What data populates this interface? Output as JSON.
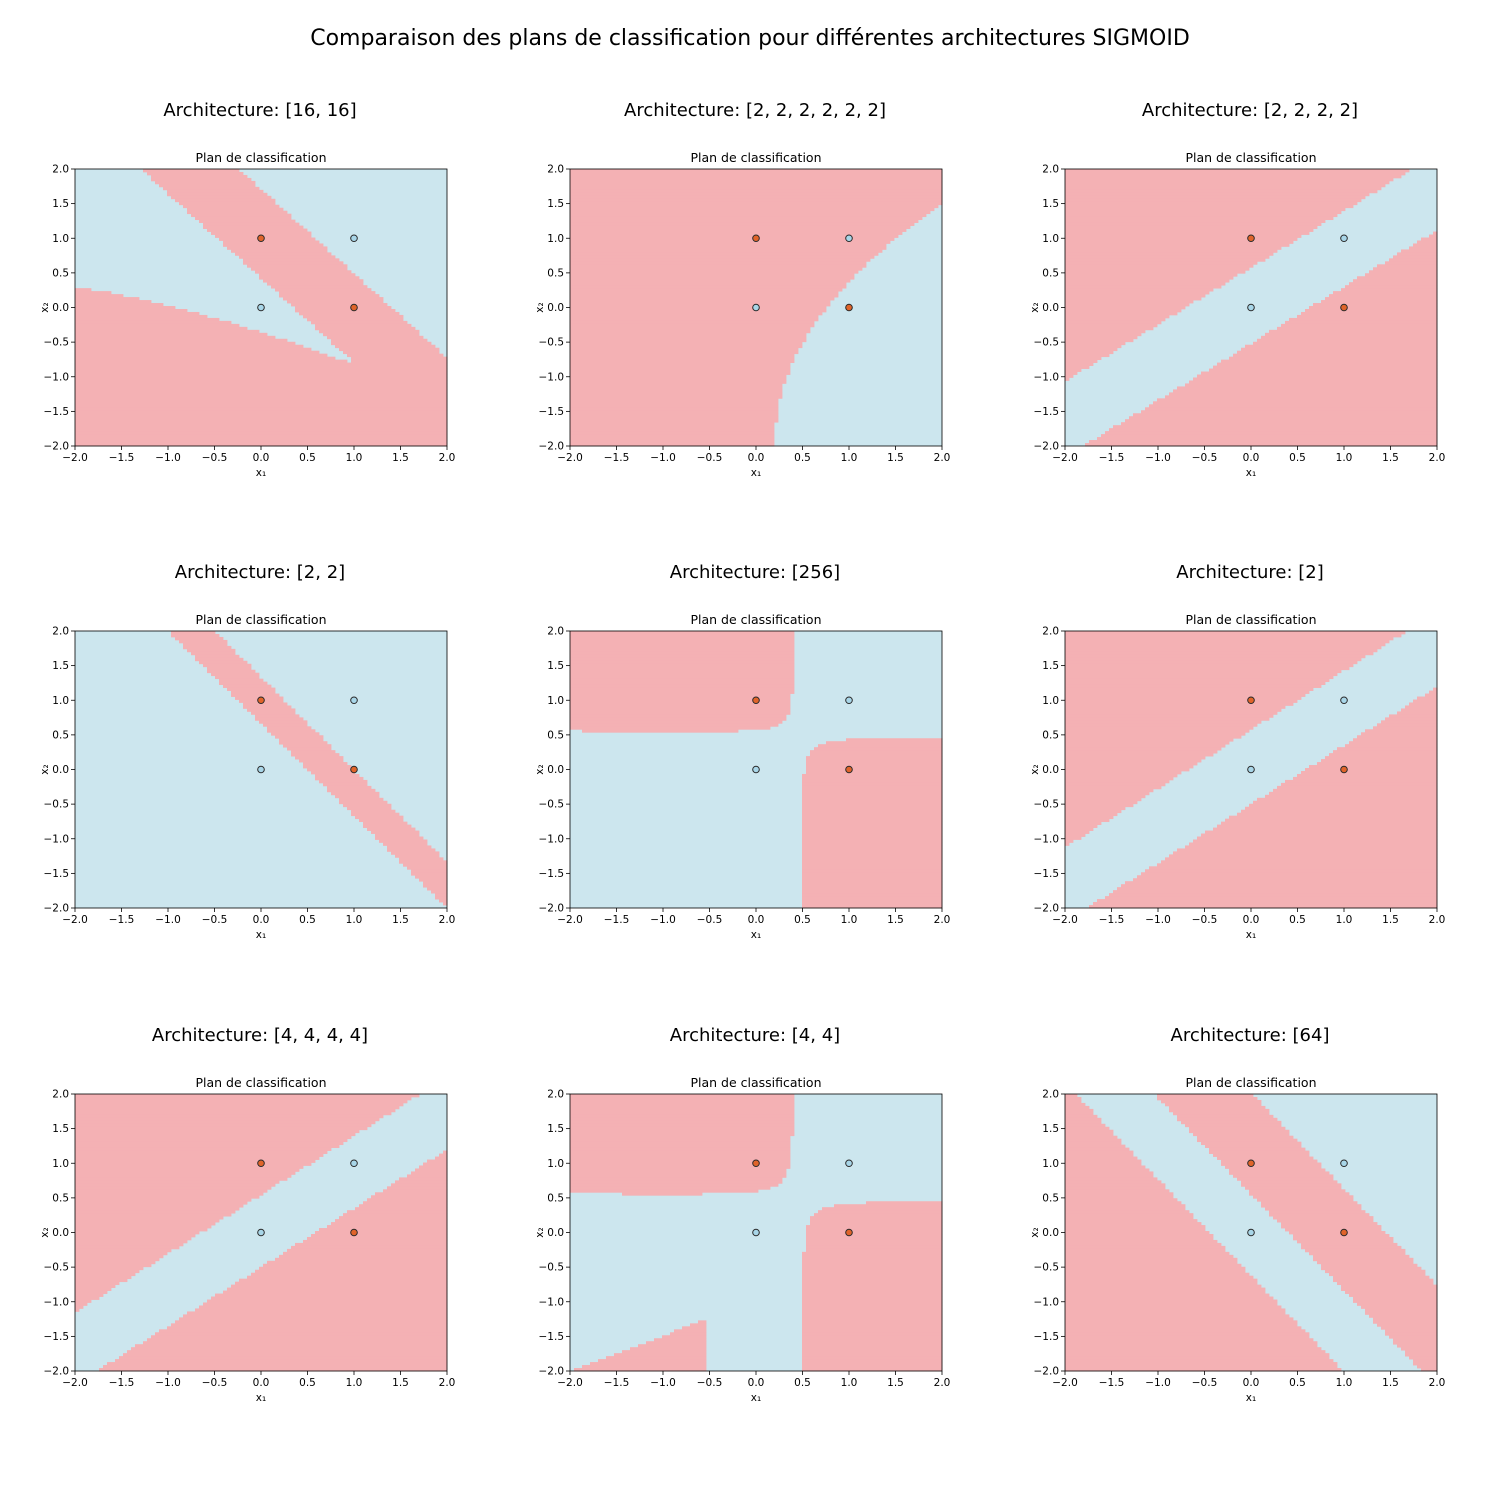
{
  "figure": {
    "title": "Comparaison des plans de classification pour différentes architectures SIGMOID"
  },
  "style": {
    "class0_color": "#cce6ee",
    "class1_color": "#f4b1b4",
    "point0_color": "#a8d6e8",
    "point1_color": "#e0642a",
    "axis_color": "#000000"
  },
  "chart_data": [
    {
      "type": "heatmap",
      "architecture_label": "Architecture: [16, 16]",
      "title": "Plan de classification",
      "xlabel": "x₁",
      "ylabel": "x₂",
      "xlim": [
        -2.0,
        2.0
      ],
      "ylim": [
        -2.0,
        2.0
      ],
      "xticks": [
        "−2.0",
        "−1.5",
        "−1.0",
        "−0.5",
        "0.0",
        "0.5",
        "1.0",
        "1.5",
        "2.0"
      ],
      "yticks": [
        "−2.0",
        "−1.5",
        "−1.0",
        "−0.5",
        "0.0",
        "0.5",
        "1.0",
        "1.5",
        "2.0"
      ],
      "points": [
        {
          "x": 0,
          "y": 0,
          "label": 0
        },
        {
          "x": 0,
          "y": 1,
          "label": 1
        },
        {
          "x": 1,
          "y": 0,
          "label": 1
        },
        {
          "x": 1,
          "y": 1,
          "label": 0
        }
      ]
    },
    {
      "type": "heatmap",
      "architecture_label": "Architecture: [2, 2, 2, 2, 2, 2]",
      "title": "Plan de classification",
      "xlabel": "x₁",
      "ylabel": "x₂",
      "xlim": [
        -2.0,
        2.0
      ],
      "ylim": [
        -2.0,
        2.0
      ],
      "xticks": [
        "−2.0",
        "−1.5",
        "−1.0",
        "−0.5",
        "0.0",
        "0.5",
        "1.0",
        "1.5",
        "2.0"
      ],
      "yticks": [
        "−2.0",
        "−1.5",
        "−1.0",
        "−0.5",
        "0.0",
        "0.5",
        "1.0",
        "1.5",
        "2.0"
      ],
      "points": [
        {
          "x": 0,
          "y": 0,
          "label": 0
        },
        {
          "x": 0,
          "y": 1,
          "label": 1
        },
        {
          "x": 1,
          "y": 0,
          "label": 1
        },
        {
          "x": 1,
          "y": 1,
          "label": 0
        }
      ]
    },
    {
      "type": "heatmap",
      "architecture_label": "Architecture: [2, 2, 2, 2]",
      "title": "Plan de classification",
      "xlabel": "x₁",
      "ylabel": "x₂",
      "xlim": [
        -2.0,
        2.0
      ],
      "ylim": [
        -2.0,
        2.0
      ],
      "xticks": [
        "−2.0",
        "−1.5",
        "−1.0",
        "−0.5",
        "0.0",
        "0.5",
        "1.0",
        "1.5",
        "2.0"
      ],
      "yticks": [
        "−2.0",
        "−1.5",
        "−1.0",
        "−0.5",
        "0.0",
        "0.5",
        "1.0",
        "1.5",
        "2.0"
      ],
      "points": [
        {
          "x": 0,
          "y": 0,
          "label": 0
        },
        {
          "x": 0,
          "y": 1,
          "label": 1
        },
        {
          "x": 1,
          "y": 0,
          "label": 1
        },
        {
          "x": 1,
          "y": 1,
          "label": 0
        }
      ]
    },
    {
      "type": "heatmap",
      "architecture_label": "Architecture: [2, 2]",
      "title": "Plan de classification",
      "xlabel": "x₁",
      "ylabel": "x₂",
      "xlim": [
        -2.0,
        2.0
      ],
      "ylim": [
        -2.0,
        2.0
      ],
      "xticks": [
        "−2.0",
        "−1.5",
        "−1.0",
        "−0.5",
        "0.0",
        "0.5",
        "1.0",
        "1.5",
        "2.0"
      ],
      "yticks": [
        "−2.0",
        "−1.5",
        "−1.0",
        "−0.5",
        "0.0",
        "0.5",
        "1.0",
        "1.5",
        "2.0"
      ],
      "points": [
        {
          "x": 0,
          "y": 0,
          "label": 0
        },
        {
          "x": 0,
          "y": 1,
          "label": 1
        },
        {
          "x": 1,
          "y": 0,
          "label": 1
        },
        {
          "x": 1,
          "y": 1,
          "label": 0
        }
      ]
    },
    {
      "type": "heatmap",
      "architecture_label": "Architecture: [256]",
      "title": "Plan de classification",
      "xlabel": "x₁",
      "ylabel": "x₂",
      "xlim": [
        -2.0,
        2.0
      ],
      "ylim": [
        -2.0,
        2.0
      ],
      "xticks": [
        "−2.0",
        "−1.5",
        "−1.0",
        "−0.5",
        "0.0",
        "0.5",
        "1.0",
        "1.5",
        "2.0"
      ],
      "yticks": [
        "−2.0",
        "−1.5",
        "−1.0",
        "−0.5",
        "0.0",
        "0.5",
        "1.0",
        "1.5",
        "2.0"
      ],
      "points": [
        {
          "x": 0,
          "y": 0,
          "label": 0
        },
        {
          "x": 0,
          "y": 1,
          "label": 1
        },
        {
          "x": 1,
          "y": 0,
          "label": 1
        },
        {
          "x": 1,
          "y": 1,
          "label": 0
        }
      ]
    },
    {
      "type": "heatmap",
      "architecture_label": "Architecture: [2]",
      "title": "Plan de classification",
      "xlabel": "x₁",
      "ylabel": "x₂",
      "xlim": [
        -2.0,
        2.0
      ],
      "ylim": [
        -2.0,
        2.0
      ],
      "xticks": [
        "−2.0",
        "−1.5",
        "−1.0",
        "−0.5",
        "0.0",
        "0.5",
        "1.0",
        "1.5",
        "2.0"
      ],
      "yticks": [
        "−2.0",
        "−1.5",
        "−1.0",
        "−0.5",
        "0.0",
        "0.5",
        "1.0",
        "1.5",
        "2.0"
      ],
      "points": [
        {
          "x": 0,
          "y": 0,
          "label": 0
        },
        {
          "x": 0,
          "y": 1,
          "label": 1
        },
        {
          "x": 1,
          "y": 0,
          "label": 1
        },
        {
          "x": 1,
          "y": 1,
          "label": 0
        }
      ]
    },
    {
      "type": "heatmap",
      "architecture_label": "Architecture: [4, 4, 4, 4]",
      "title": "Plan de classification",
      "xlabel": "x₁",
      "ylabel": "x₂",
      "xlim": [
        -2.0,
        2.0
      ],
      "ylim": [
        -2.0,
        2.0
      ],
      "xticks": [
        "−2.0",
        "−1.5",
        "−1.0",
        "−0.5",
        "0.0",
        "0.5",
        "1.0",
        "1.5",
        "2.0"
      ],
      "yticks": [
        "−2.0",
        "−1.5",
        "−1.0",
        "−0.5",
        "0.0",
        "0.5",
        "1.0",
        "1.5",
        "2.0"
      ],
      "points": [
        {
          "x": 0,
          "y": 0,
          "label": 0
        },
        {
          "x": 0,
          "y": 1,
          "label": 1
        },
        {
          "x": 1,
          "y": 0,
          "label": 1
        },
        {
          "x": 1,
          "y": 1,
          "label": 0
        }
      ]
    },
    {
      "type": "heatmap",
      "architecture_label": "Architecture: [4, 4]",
      "title": "Plan de classification",
      "xlabel": "x₁",
      "ylabel": "x₂",
      "xlim": [
        -2.0,
        2.0
      ],
      "ylim": [
        -2.0,
        2.0
      ],
      "xticks": [
        "−2.0",
        "−1.5",
        "−1.0",
        "−0.5",
        "0.0",
        "0.5",
        "1.0",
        "1.5",
        "2.0"
      ],
      "yticks": [
        "−2.0",
        "−1.5",
        "−1.0",
        "−0.5",
        "0.0",
        "0.5",
        "1.0",
        "1.5",
        "2.0"
      ],
      "points": [
        {
          "x": 0,
          "y": 0,
          "label": 0
        },
        {
          "x": 0,
          "y": 1,
          "label": 1
        },
        {
          "x": 1,
          "y": 0,
          "label": 1
        },
        {
          "x": 1,
          "y": 1,
          "label": 0
        }
      ]
    },
    {
      "type": "heatmap",
      "architecture_label": "Architecture: [64]",
      "title": "Plan de classification",
      "xlabel": "x₁",
      "ylabel": "x₂",
      "xlim": [
        -2.0,
        2.0
      ],
      "ylim": [
        -2.0,
        2.0
      ],
      "xticks": [
        "−2.0",
        "−1.5",
        "−1.0",
        "−0.5",
        "0.0",
        "0.5",
        "1.0",
        "1.5",
        "2.0"
      ],
      "yticks": [
        "−2.0",
        "−1.5",
        "−1.0",
        "−0.5",
        "0.0",
        "0.5",
        "1.0",
        "1.5",
        "2.0"
      ],
      "points": [
        {
          "x": 0,
          "y": 0,
          "label": 0
        },
        {
          "x": 0,
          "y": 1,
          "label": 1
        },
        {
          "x": 1,
          "y": 0,
          "label": 1
        },
        {
          "x": 1,
          "y": 1,
          "label": 0
        }
      ]
    }
  ]
}
